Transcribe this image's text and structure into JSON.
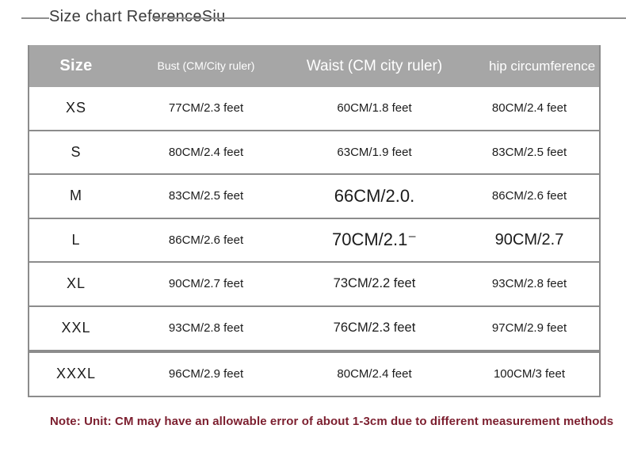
{
  "title": "Size chart ReferenceSiu",
  "table": {
    "headers": {
      "size": "Size",
      "bust": "Bust (CM/City ruler)",
      "waist": "Waist (CM city ruler)",
      "hip": "hip circumference"
    },
    "rows": [
      {
        "size": "XS",
        "bust": "77CM/2.3 feet",
        "waist": "60CM/1.8 feet",
        "hip": "80CM/2.4 feet"
      },
      {
        "size": "S",
        "bust": "80CM/2.4 feet",
        "waist": "63CM/1.9 feet",
        "hip": "83CM/2.5 feet"
      },
      {
        "size": "M",
        "bust": "83CM/2.5 feet",
        "waist": "66CM/2.0.",
        "hip": "86CM/2.6 feet"
      },
      {
        "size": "L",
        "bust": "86CM/2.6 feet",
        "waist": "70CM/2.1⁻",
        "hip": "90CM/2.7"
      },
      {
        "size": "XL",
        "bust": "90CM/2.7 feet",
        "waist": "73CM/2.2 feet",
        "hip": "93CM/2.8 feet"
      },
      {
        "size": "XXL",
        "bust": "93CM/2.8 feet",
        "waist": "76CM/2.3 feet",
        "hip": "97CM/2.9 feet"
      },
      {
        "size": "XXXL",
        "bust": "96CM/2.9 feet",
        "waist": "80CM/2.4 feet",
        "hip": "100CM/3 feet"
      }
    ]
  },
  "note": "Note: Unit: CM may have an allowable error of about 1-3cm due to different measurement methods",
  "colors": {
    "header_bg": "#a6a6a6",
    "header_text": "#ffffff",
    "body_text": "#1c1c1c",
    "note_text": "#7c1f2f",
    "border": "#8c8c8c",
    "title_rule": "#8f8f8f"
  }
}
